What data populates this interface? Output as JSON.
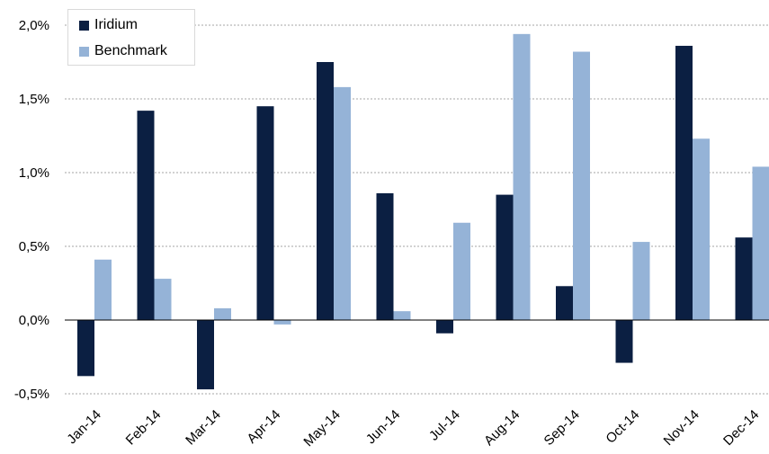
{
  "chart_data": {
    "type": "bar",
    "categories": [
      "Jan-14",
      "Feb-14",
      "Mar-14",
      "Apr-14",
      "May-14",
      "Jun-14",
      "Jul-14",
      "Aug-14",
      "Sep-14",
      "Oct-14",
      "Nov-14",
      "Dec-14"
    ],
    "series": [
      {
        "name": "Iridium",
        "color": "#0b1f42",
        "values": [
          -0.38,
          1.42,
          -0.47,
          1.45,
          1.75,
          0.86,
          -0.09,
          0.85,
          0.23,
          -0.29,
          1.86,
          0.56
        ]
      },
      {
        "name": "Benchmark",
        "color": "#95b3d7",
        "values": [
          0.41,
          0.28,
          0.08,
          -0.03,
          1.58,
          0.06,
          0.66,
          1.94,
          1.82,
          0.53,
          1.23,
          1.04
        ]
      }
    ],
    "yticks": [
      "-0,5%",
      "0,0%",
      "0,5%",
      "1,0%",
      "1,5%",
      "2,0%"
    ],
    "ytick_values": [
      -0.5,
      0.0,
      0.5,
      1.0,
      1.5,
      2.0
    ],
    "ylim": [
      -0.5,
      2.0
    ],
    "grid": "horizontal dotted",
    "legend": "top-left"
  }
}
